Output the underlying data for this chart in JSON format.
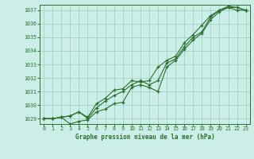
{
  "title": "Graphe pression niveau de la mer (hPa)",
  "background_color": "#cceee8",
  "grid_color": "#99ccbb",
  "line_color": "#2d6e2d",
  "x_min": 0,
  "x_max": 23,
  "y_min": 1029,
  "y_max": 1037,
  "x_ticks": [
    0,
    1,
    2,
    3,
    4,
    5,
    6,
    7,
    8,
    9,
    10,
    11,
    12,
    13,
    14,
    15,
    16,
    17,
    18,
    19,
    20,
    21,
    22,
    23
  ],
  "y_ticks": [
    1029,
    1030,
    1031,
    1032,
    1033,
    1034,
    1035,
    1036,
    1037
  ],
  "series1": [
    1029.0,
    1029.0,
    1029.1,
    1029.2,
    1029.5,
    1029.0,
    1029.8,
    1030.3,
    1030.7,
    1031.0,
    1031.5,
    1031.8,
    1031.5,
    1031.8,
    1033.1,
    1033.4,
    1034.3,
    1035.0,
    1035.4,
    1036.5,
    1037.0,
    1037.3,
    1037.2,
    1037.0
  ],
  "series2": [
    1029.0,
    1029.0,
    1029.1,
    1028.6,
    1028.8,
    1028.9,
    1029.5,
    1029.7,
    1030.1,
    1030.2,
    1031.3,
    1031.5,
    1031.3,
    1031.0,
    1032.8,
    1033.3,
    1034.1,
    1034.8,
    1035.3,
    1036.3,
    1036.9,
    1037.2,
    1037.0,
    1037.0
  ],
  "series3": [
    1029.0,
    1029.0,
    1029.1,
    1029.2,
    1029.5,
    1029.1,
    1030.1,
    1030.5,
    1031.1,
    1031.2,
    1031.8,
    1031.7,
    1031.8,
    1032.8,
    1033.3,
    1033.6,
    1034.6,
    1035.2,
    1035.9,
    1036.6,
    1037.0,
    1037.2,
    1037.2,
    1037.0
  ]
}
